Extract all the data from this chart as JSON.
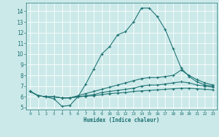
{
  "xlabel": "Humidex (Indice chaleur)",
  "xlim": [
    -0.5,
    23.5
  ],
  "ylim": [
    4.8,
    14.8
  ],
  "yticks": [
    5,
    6,
    7,
    8,
    9,
    10,
    11,
    12,
    13,
    14
  ],
  "xticks": [
    0,
    1,
    2,
    3,
    4,
    5,
    6,
    7,
    8,
    9,
    10,
    11,
    12,
    13,
    14,
    15,
    16,
    17,
    18,
    19,
    20,
    21,
    22,
    23
  ],
  "bg_color": "#cce9e9",
  "line_color": "#1a7070",
  "grid_color": "#ffffff",
  "lines": [
    {
      "x": [
        0,
        1,
        2,
        3,
        4,
        5,
        6,
        7,
        8,
        9,
        10,
        11,
        12,
        13,
        14,
        15,
        16,
        17,
        18,
        19,
        20,
        21,
        22,
        23
      ],
      "y": [
        6.5,
        6.1,
        6.0,
        5.8,
        5.1,
        5.2,
        6.0,
        7.2,
        8.6,
        10.0,
        10.7,
        11.8,
        12.1,
        13.0,
        14.3,
        14.3,
        13.5,
        12.3,
        10.5,
        8.7,
        7.9,
        7.4,
        7.1,
        7.0
      ]
    },
    {
      "x": [
        0,
        1,
        2,
        3,
        4,
        5,
        6,
        7,
        8,
        9,
        10,
        11,
        12,
        13,
        14,
        15,
        16,
        17,
        18,
        19,
        20,
        21,
        22,
        23
      ],
      "y": [
        6.5,
        6.1,
        6.0,
        6.0,
        5.9,
        5.9,
        6.1,
        6.3,
        6.5,
        6.7,
        6.9,
        7.1,
        7.3,
        7.5,
        7.7,
        7.8,
        7.8,
        7.9,
        8.0,
        8.5,
        8.0,
        7.6,
        7.3,
        7.1
      ]
    },
    {
      "x": [
        0,
        1,
        2,
        3,
        4,
        5,
        6,
        7,
        8,
        9,
        10,
        11,
        12,
        13,
        14,
        15,
        16,
        17,
        18,
        19,
        20,
        21,
        22,
        23
      ],
      "y": [
        6.5,
        6.1,
        6.0,
        6.0,
        5.9,
        5.9,
        6.0,
        6.1,
        6.2,
        6.4,
        6.5,
        6.6,
        6.7,
        6.8,
        7.0,
        7.1,
        7.1,
        7.2,
        7.3,
        7.4,
        7.3,
        7.1,
        7.0,
        6.9
      ]
    },
    {
      "x": [
        0,
        1,
        2,
        3,
        4,
        5,
        6,
        7,
        8,
        9,
        10,
        11,
        12,
        13,
        14,
        15,
        16,
        17,
        18,
        19,
        20,
        21,
        22,
        23
      ],
      "y": [
        6.5,
        6.1,
        6.0,
        6.0,
        5.9,
        5.9,
        6.0,
        6.05,
        6.1,
        6.2,
        6.3,
        6.35,
        6.4,
        6.5,
        6.55,
        6.6,
        6.65,
        6.7,
        6.75,
        6.8,
        6.8,
        6.75,
        6.7,
        6.65
      ]
    }
  ]
}
